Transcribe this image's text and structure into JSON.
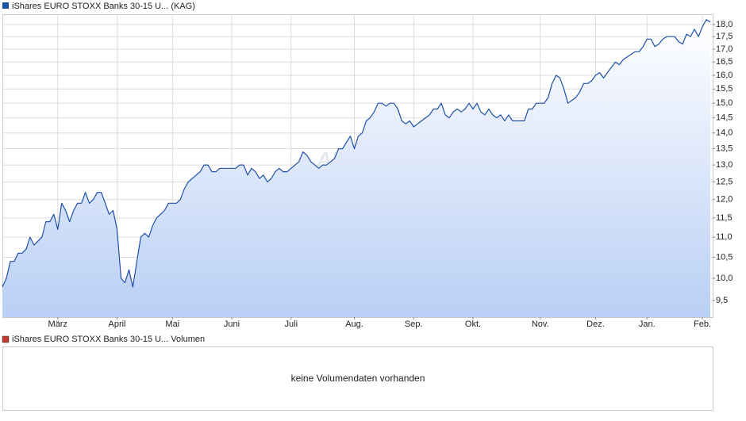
{
  "chart_data": {
    "type": "line",
    "legend": "iShares EURO STOXX Banks 30-15 U... (KAG)",
    "watermark": "ARIVA.DE",
    "log_scale": true,
    "grid": true,
    "xlim": [
      0,
      179
    ],
    "xticks": [
      {
        "value": 14,
        "label": "März"
      },
      {
        "value": 29,
        "label": "April"
      },
      {
        "value": 43,
        "label": "Mai"
      },
      {
        "value": 58,
        "label": "Juni"
      },
      {
        "value": 73,
        "label": "Juli"
      },
      {
        "value": 89,
        "label": "Aug."
      },
      {
        "value": 104,
        "label": "Sep."
      },
      {
        "value": 119,
        "label": "Okt."
      },
      {
        "value": 136,
        "label": "Nov."
      },
      {
        "value": 150,
        "label": "Dez."
      },
      {
        "value": 163,
        "label": "Jan."
      },
      {
        "value": 177,
        "label": "Feb."
      }
    ],
    "ylim": [
      9.14,
      18.43
    ],
    "yticks": [
      {
        "value": 9.5,
        "label": "9,5"
      },
      {
        "value": 10,
        "label": "10,0"
      },
      {
        "value": 10.5,
        "label": "10,5"
      },
      {
        "value": 11,
        "label": "11,0"
      },
      {
        "value": 11.5,
        "label": "11,5"
      },
      {
        "value": 12,
        "label": "12,0"
      },
      {
        "value": 12.5,
        "label": "12,5"
      },
      {
        "value": 13,
        "label": "13,0"
      },
      {
        "value": 13.5,
        "label": "13,5"
      },
      {
        "value": 14,
        "label": "14,0"
      },
      {
        "value": 14.5,
        "label": "14,5"
      },
      {
        "value": 15,
        "label": "15,0"
      },
      {
        "value": 15.5,
        "label": "15,5"
      },
      {
        "value": 16,
        "label": "16,0"
      },
      {
        "value": 16.5,
        "label": "16,5"
      },
      {
        "value": 17,
        "label": "17,0"
      },
      {
        "value": 17.5,
        "label": "17,5"
      },
      {
        "value": 18,
        "label": "18,0"
      }
    ],
    "series": [
      {
        "name": "iShares EURO STOXX Banks 30-15 U... (KAG)",
        "color": "#1f4fa8",
        "values": [
          9.8,
          10.0,
          10.4,
          10.4,
          10.6,
          10.6,
          10.7,
          11.0,
          10.8,
          10.9,
          11.0,
          11.4,
          11.4,
          11.6,
          11.2,
          11.9,
          11.7,
          11.4,
          11.7,
          11.9,
          11.9,
          12.2,
          11.9,
          12.0,
          12.2,
          12.2,
          11.9,
          11.6,
          11.7,
          11.2,
          10.0,
          9.9,
          10.2,
          9.8,
          10.4,
          11.0,
          11.1,
          11.0,
          11.3,
          11.5,
          11.6,
          11.7,
          11.9,
          11.9,
          11.9,
          12.0,
          12.3,
          12.5,
          12.6,
          12.7,
          12.8,
          13.0,
          13.0,
          12.8,
          12.8,
          12.9,
          12.9,
          12.9,
          12.9,
          12.9,
          13.0,
          13.0,
          12.7,
          12.9,
          12.8,
          12.6,
          12.7,
          12.5,
          12.6,
          12.8,
          12.9,
          12.8,
          12.8,
          12.9,
          13.0,
          13.1,
          13.4,
          13.3,
          13.1,
          13.0,
          12.9,
          13.0,
          13.0,
          13.1,
          13.2,
          13.5,
          13.5,
          13.7,
          13.9,
          13.5,
          13.9,
          14.0,
          14.4,
          14.5,
          14.7,
          15.0,
          15.0,
          14.9,
          15.0,
          15.0,
          14.8,
          14.4,
          14.3,
          14.4,
          14.2,
          14.3,
          14.4,
          14.5,
          14.6,
          14.8,
          14.8,
          15.0,
          14.6,
          14.5,
          14.7,
          14.8,
          14.7,
          14.8,
          15.0,
          14.8,
          15.0,
          14.7,
          14.6,
          14.8,
          14.6,
          14.5,
          14.6,
          14.4,
          14.6,
          14.4,
          14.4,
          14.4,
          14.4,
          14.8,
          14.8,
          15.0,
          15.0,
          15.0,
          15.2,
          15.7,
          16.0,
          15.9,
          15.5,
          15.0,
          15.1,
          15.2,
          15.4,
          15.7,
          15.7,
          15.8,
          16.0,
          16.1,
          15.9,
          16.1,
          16.3,
          16.5,
          16.4,
          16.6,
          16.7,
          16.8,
          16.9,
          16.9,
          17.1,
          17.4,
          17.4,
          17.1,
          17.2,
          17.4,
          17.5,
          17.5,
          17.5,
          17.3,
          17.2,
          17.6,
          17.5,
          17.8,
          17.5,
          17.9,
          18.2,
          18.1
        ]
      }
    ]
  },
  "volume_panel": {
    "legend": "iShares EURO STOXX Banks 30-15 U... Volumen",
    "color": "#c0392b",
    "message": "keine Volumendaten vorhanden"
  }
}
